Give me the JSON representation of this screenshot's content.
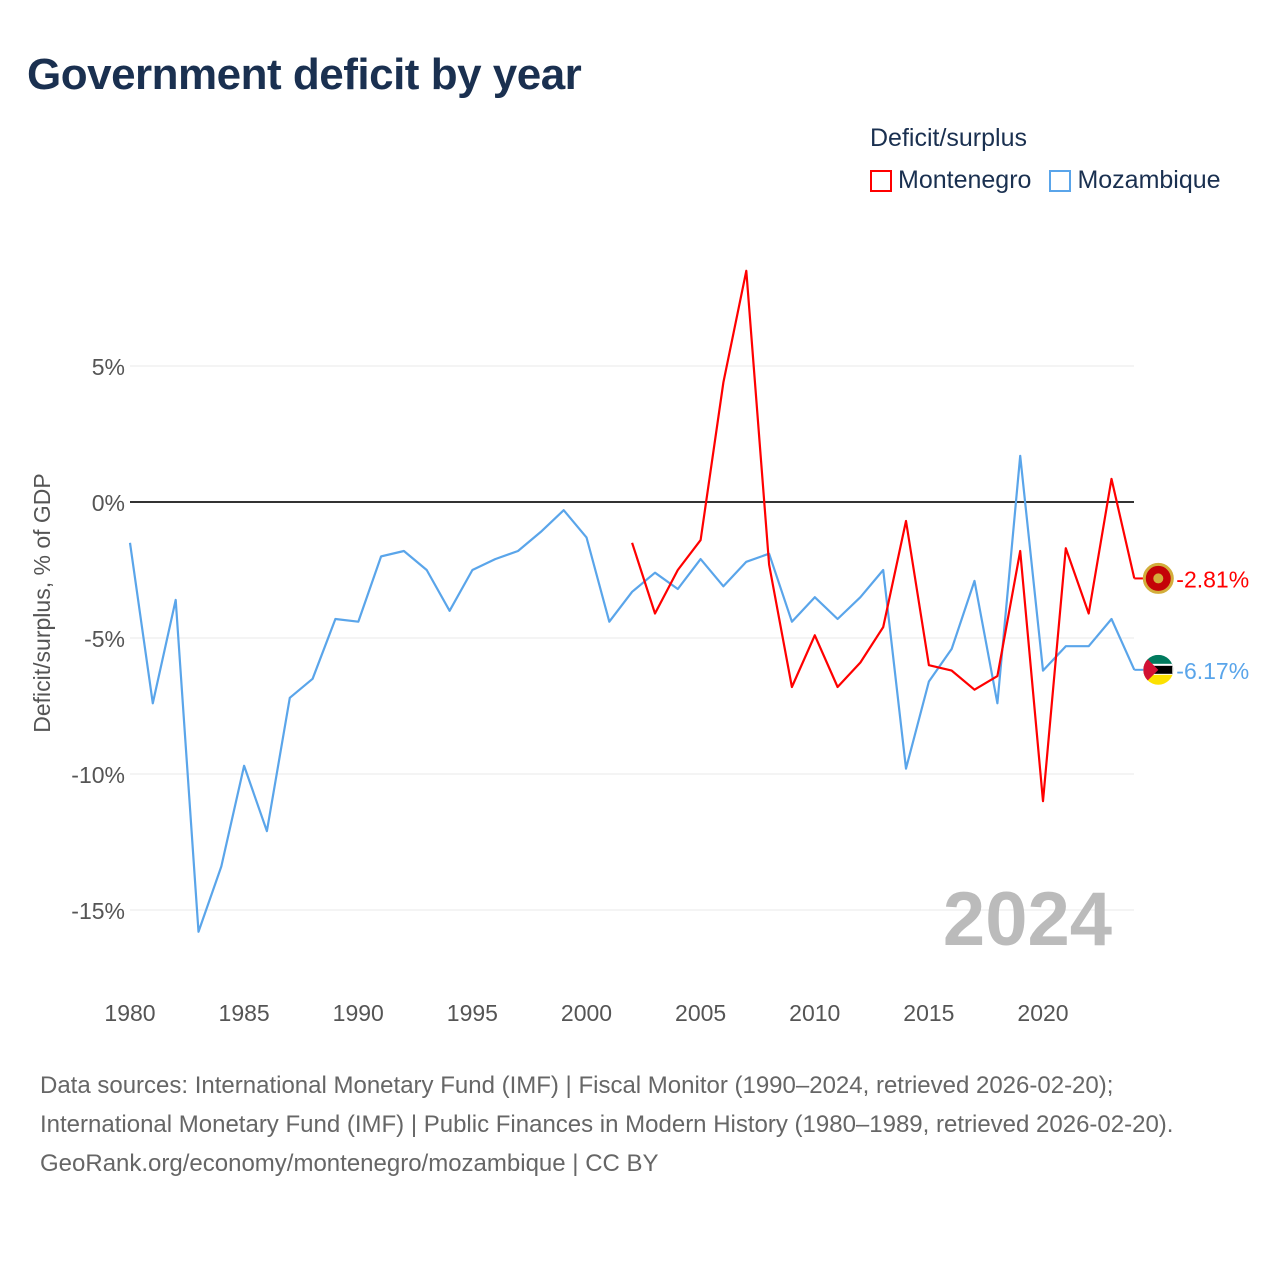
{
  "title": "Government deficit by year",
  "legend_title": "Deficit/surplus",
  "colors": {
    "Montenegro": "#ff0000",
    "Mozambique": "#5aa5ea"
  },
  "year_watermark": "2024",
  "chart_data": {
    "type": "line",
    "title": "Government deficit by year",
    "xlabel": "",
    "ylabel": "Deficit/surplus, % of GDP",
    "xlim": [
      1980,
      2024
    ],
    "ylim": [
      -17.5,
      9.5
    ],
    "xticks": [
      1980,
      1985,
      1990,
      1995,
      2000,
      2005,
      2010,
      2015,
      2020
    ],
    "xtick_labels": [
      "1980",
      "1985",
      "1990",
      "1995",
      "2000",
      "2005",
      "2010",
      "2015",
      "2020"
    ],
    "yticks": [
      5,
      0,
      -5,
      -10,
      -15
    ],
    "ytick_labels": [
      "5%",
      "0%",
      "-5%",
      "-10%",
      "-15%"
    ],
    "grid": true,
    "legend_position": "top-right",
    "series": [
      {
        "name": "Montenegro",
        "end_label": "-2.81%",
        "x": [
          2002,
          2003,
          2004,
          2005,
          2006,
          2007,
          2008,
          2009,
          2010,
          2011,
          2012,
          2013,
          2014,
          2015,
          2016,
          2017,
          2018,
          2019,
          2020,
          2021,
          2022,
          2023,
          2024
        ],
        "values": [
          -1.5,
          -4.1,
          -2.5,
          -1.4,
          4.4,
          8.5,
          -2.3,
          -6.8,
          -4.9,
          -6.8,
          -5.9,
          -4.6,
          -0.7,
          -6.0,
          -6.2,
          -6.9,
          -6.4,
          -1.8,
          -11.0,
          -1.7,
          -4.1,
          0.85,
          -2.81
        ]
      },
      {
        "name": "Mozambique",
        "end_label": "-6.17%",
        "x": [
          1980,
          1981,
          1982,
          1983,
          1984,
          1985,
          1986,
          1987,
          1988,
          1989,
          1990,
          1991,
          1992,
          1993,
          1994,
          1995,
          1996,
          1997,
          1998,
          1999,
          2000,
          2001,
          2002,
          2003,
          2004,
          2005,
          2006,
          2007,
          2008,
          2009,
          2010,
          2011,
          2012,
          2013,
          2014,
          2015,
          2016,
          2017,
          2018,
          2019,
          2020,
          2021,
          2022,
          2023,
          2024
        ],
        "values": [
          -1.5,
          -7.4,
          -3.6,
          -15.8,
          -13.4,
          -9.7,
          -12.1,
          -7.2,
          -6.5,
          -4.3,
          -4.4,
          -2.0,
          -1.8,
          -2.5,
          -4.0,
          -2.5,
          -2.1,
          -1.8,
          -1.1,
          -0.3,
          -1.3,
          -4.4,
          -3.3,
          -2.6,
          -3.2,
          -2.1,
          -3.1,
          -2.2,
          -1.9,
          -4.4,
          -3.5,
          -4.3,
          -3.5,
          -2.5,
          -9.8,
          -6.6,
          -5.4,
          -2.9,
          -7.4,
          1.7,
          -6.2,
          -5.3,
          -5.3,
          -4.3,
          -6.17
        ]
      }
    ]
  },
  "footer": {
    "sources": "Data sources: International Monetary Fund (IMF) | Fiscal Monitor (1990–2024, retrieved 2026-02-20); International Monetary Fund (IMF) | Public Finances in Modern History (1980–1989, retrieved 2026-02-20).",
    "credit": "GeoRank.org/economy/montenegro/mozambique | CC BY"
  }
}
